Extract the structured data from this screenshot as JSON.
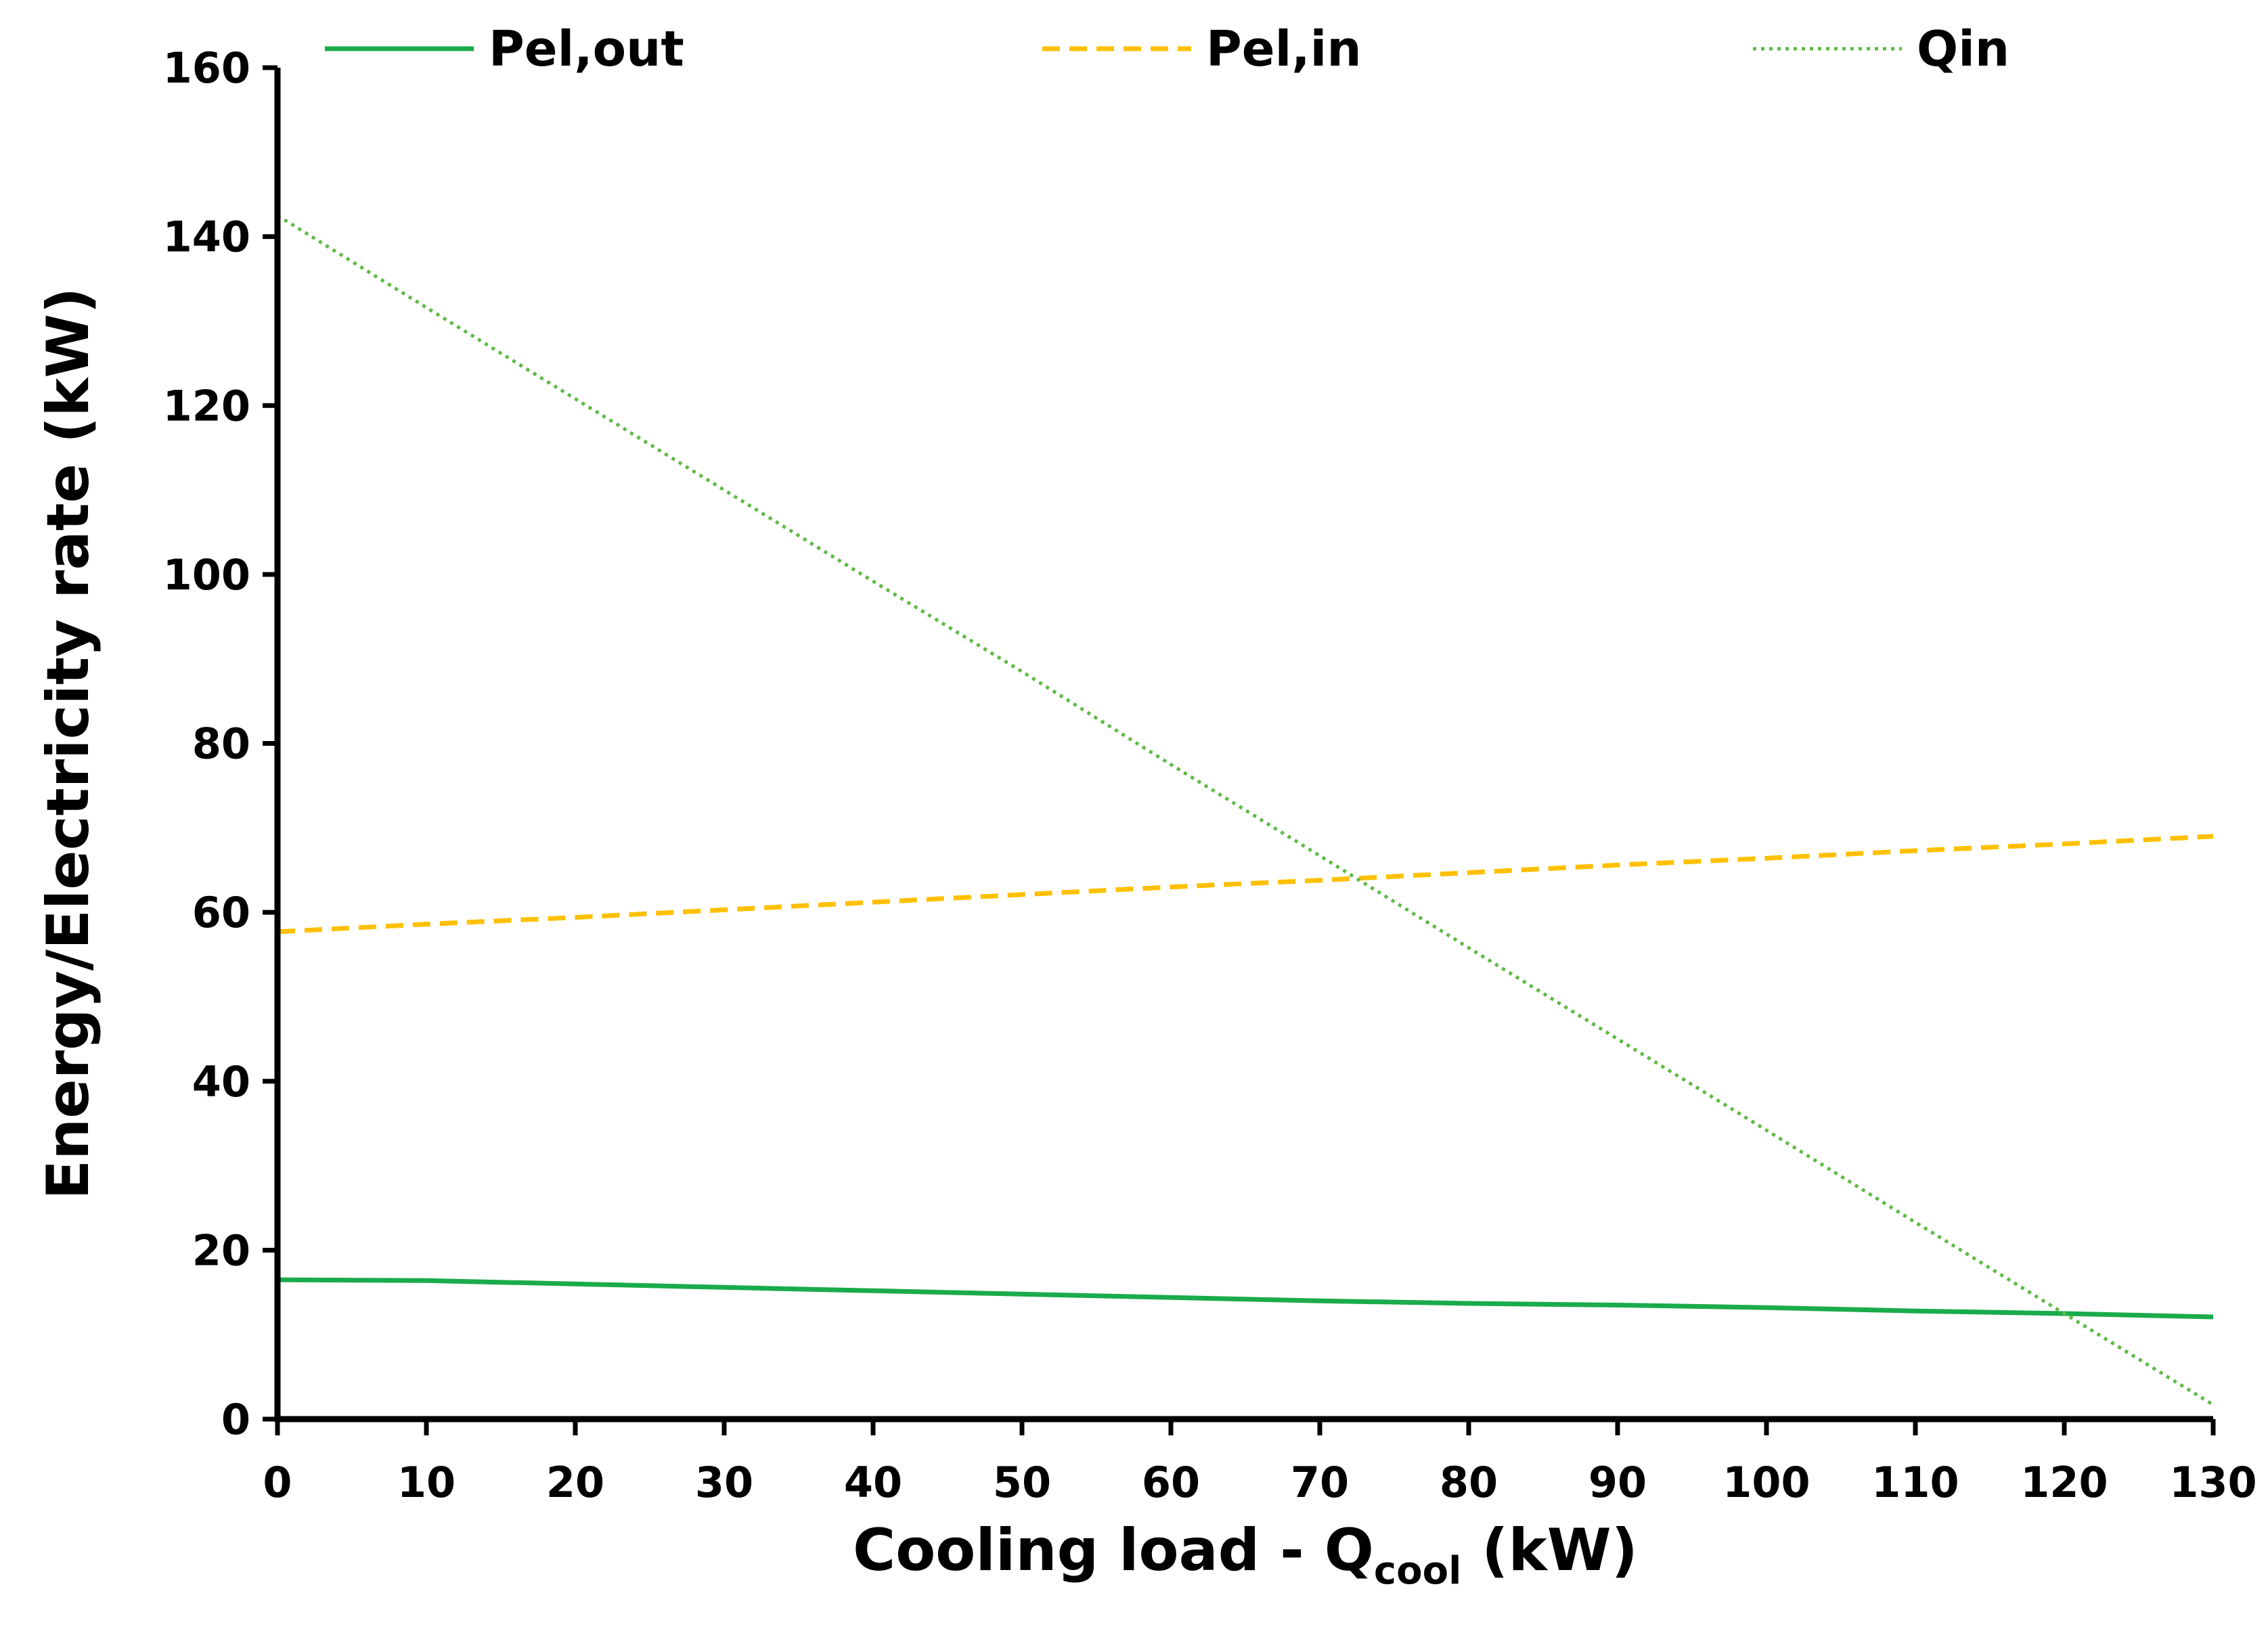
{
  "chart_data": {
    "type": "line",
    "title": "",
    "xlabel_main": "Cooling load - Q",
    "xlabel_sub": "cool",
    "xlabel_unit": " (kW)",
    "ylabel": "Energy/Electricity rate (kW)",
    "xlim": [
      0,
      130
    ],
    "ylim": [
      0,
      160
    ],
    "xticks": [
      0,
      10,
      20,
      30,
      40,
      50,
      60,
      70,
      80,
      90,
      100,
      110,
      120,
      130
    ],
    "yticks": [
      0,
      20,
      40,
      60,
      80,
      100,
      120,
      140,
      160
    ],
    "grid": false,
    "legend_position": "top",
    "series": [
      {
        "name": "Pel,out",
        "color": "#1aab4b",
        "style": "solid",
        "x": [
          0,
          10,
          20,
          30,
          40,
          50,
          60,
          70,
          80,
          90,
          100,
          110,
          120,
          130
        ],
        "values": [
          16.5,
          16.4,
          16.0,
          15.6,
          15.2,
          14.8,
          14.4,
          14.0,
          13.7,
          13.5,
          13.2,
          12.8,
          12.5,
          12.1
        ]
      },
      {
        "name": "Pel,in",
        "color": "#ffc000",
        "style": "dashed",
        "x": [
          0,
          10,
          20,
          30,
          40,
          50,
          60,
          70,
          80,
          90,
          100,
          110,
          120,
          130
        ],
        "values": [
          57.7,
          58.6,
          59.4,
          60.3,
          61.2,
          62.1,
          63.0,
          63.8,
          64.7,
          65.6,
          66.4,
          67.3,
          68.1,
          69.0
        ]
      },
      {
        "name": "Qin",
        "color": "#5fba46",
        "style": "dotted",
        "x": [
          0,
          10,
          20,
          30,
          40,
          50,
          60,
          70,
          80,
          90,
          100,
          110,
          120,
          130
        ],
        "values": [
          142.5,
          131.6,
          120.8,
          110.0,
          99.2,
          88.5,
          77.5,
          66.7,
          55.8,
          45.0,
          34.2,
          23.3,
          12.5,
          1.7
        ]
      }
    ]
  }
}
